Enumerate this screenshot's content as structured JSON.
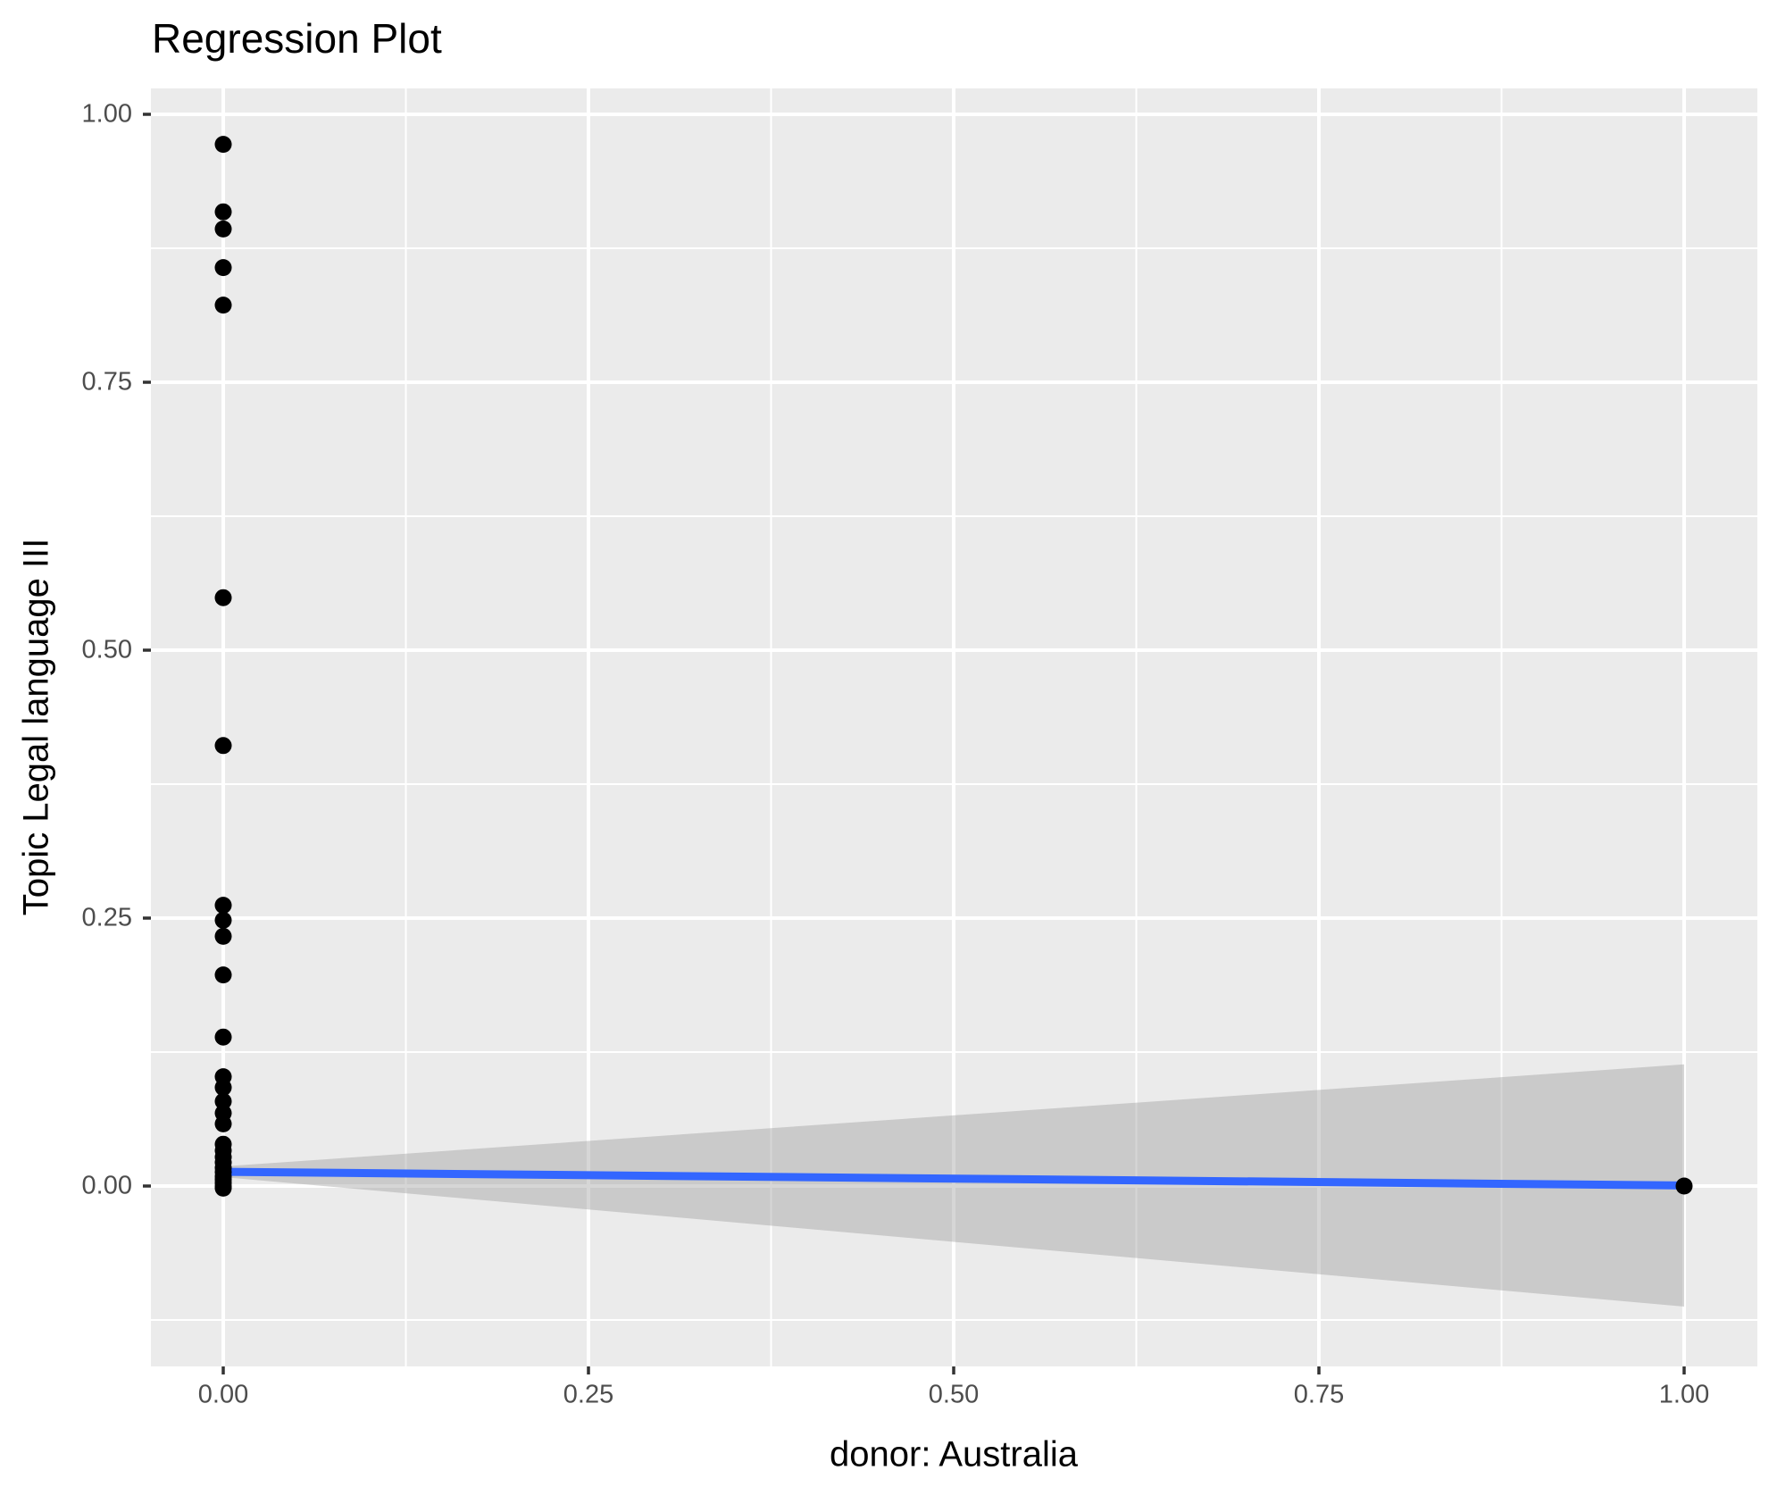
{
  "chart_data": {
    "type": "scatter",
    "title": "Regression Plot",
    "xlabel": "donor: Australia",
    "ylabel": "Topic Legal language III",
    "xlim": [
      -0.0495,
      1.0501
    ],
    "ylim": [
      -0.1683,
      1.0242
    ],
    "grid": "major-and-minor",
    "legend": "none",
    "x_ticks": {
      "values": [
        0,
        0.25,
        0.5,
        0.75,
        1
      ],
      "labels": [
        "0.00",
        "0.25",
        "0.50",
        "0.75",
        "1.00"
      ]
    },
    "y_ticks": {
      "values": [
        0,
        0.25,
        0.5,
        0.75,
        1
      ],
      "labels": [
        "0.00",
        "0.25",
        "0.50",
        "0.75",
        "1.00"
      ]
    },
    "x_minor_ticks": [
      0.125,
      0.375,
      0.625,
      0.875
    ],
    "y_minor_ticks": [
      -0.125,
      0.125,
      0.375,
      0.625,
      0.875
    ],
    "points": [
      [
        0,
        0.972
      ],
      [
        0,
        0.909
      ],
      [
        0,
        0.893
      ],
      [
        0,
        0.857
      ],
      [
        0,
        0.822
      ],
      [
        0,
        0.549
      ],
      [
        0,
        0.411
      ],
      [
        0,
        0.262
      ],
      [
        0,
        0.248
      ],
      [
        0,
        0.233
      ],
      [
        0,
        0.197
      ],
      [
        0,
        0.139
      ],
      [
        0,
        0.102
      ],
      [
        0,
        0.092
      ],
      [
        0,
        0.079
      ],
      [
        0,
        0.068
      ],
      [
        0,
        0.058
      ],
      [
        0,
        0.039
      ],
      [
        0,
        0.033
      ],
      [
        0,
        0.027
      ],
      [
        0,
        0.022
      ],
      [
        0,
        0.017
      ],
      [
        0,
        0.013
      ],
      [
        0,
        0.009
      ],
      [
        0,
        0.006
      ],
      [
        0,
        0.003
      ],
      [
        0,
        0.0
      ],
      [
        0,
        -0.002
      ],
      [
        1,
        0.0
      ]
    ],
    "regression_line": {
      "x": [
        0,
        1
      ],
      "y": [
        0.0133,
        0.0005
      ]
    },
    "confidence_ribbon": {
      "x": [
        0,
        0.25,
        0.5,
        0.75,
        1
      ],
      "upper": [
        0.0183,
        0.0421,
        0.0659,
        0.0897,
        0.1135
      ],
      "lower": [
        0.0083,
        -0.0219,
        -0.0521,
        -0.0823,
        -0.1125
      ]
    },
    "colors": {
      "panel_background": "#EBEBEB",
      "gridline": "#FFFFFF",
      "ribbon_fill": "rgba(153,153,153,0.4)",
      "regression_line": "#3366FF",
      "point": "#000000",
      "tick_mark": "#333333",
      "tick_label_text": "#4D4D4D",
      "title_text": "#000000"
    }
  }
}
